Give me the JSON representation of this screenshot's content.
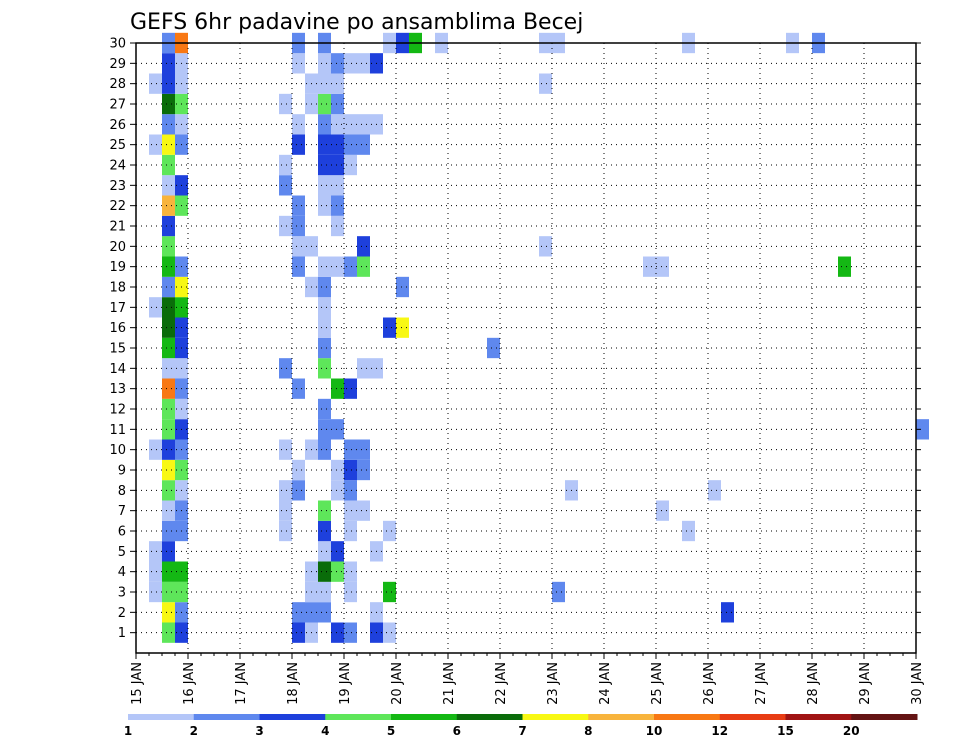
{
  "chart_data": {
    "type": "heatmap",
    "title": "GEFS 6hr padavine po ansamblima Becej",
    "xlabel": "",
    "ylabel": "",
    "x_tick_labels": [
      "15 JAN",
      "16 JAN",
      "17 JAN",
      "18 JAN",
      "19 JAN",
      "20 JAN",
      "21 JAN",
      "22 JAN",
      "23 JAN",
      "24 JAN",
      "25 JAN",
      "26 JAN",
      "27 JAN",
      "28 JAN",
      "29 JAN",
      "30 JAN"
    ],
    "y_tick_labels": [
      "1",
      "2",
      "3",
      "4",
      "5",
      "6",
      "7",
      "8",
      "9",
      "10",
      "11",
      "12",
      "13",
      "14",
      "15",
      "16",
      "17",
      "18",
      "19",
      "20",
      "21",
      "22",
      "23",
      "24",
      "25",
      "26",
      "27",
      "28",
      "29",
      "30"
    ],
    "x_range_days": [
      15,
      30
    ],
    "y_range": [
      0,
      30
    ],
    "grid": true,
    "legend": {
      "placement": "bottom",
      "levels": [
        "1",
        "2",
        "3",
        "4",
        "5",
        "6",
        "7",
        "8",
        "10",
        "12",
        "15",
        "20"
      ],
      "colors": [
        "#b4c6f8",
        "#5f88ee",
        "#1e40dc",
        "#5ee65a",
        "#14b814",
        "#0a6c0a",
        "#f8f814",
        "#f8b43c",
        "#f87814",
        "#e83c14",
        "#a01414",
        "#641414"
      ]
    },
    "cells": [
      [
        1,
        15.5,
        4
      ],
      [
        1,
        15.75,
        3
      ],
      [
        1,
        18.0,
        3
      ],
      [
        1,
        18.25,
        1
      ],
      [
        1,
        18.75,
        3
      ],
      [
        1,
        19.0,
        2
      ],
      [
        1,
        19.5,
        3
      ],
      [
        1,
        19.75,
        1
      ],
      [
        2,
        15.5,
        7
      ],
      [
        2,
        15.75,
        2
      ],
      [
        2,
        18.0,
        2
      ],
      [
        2,
        18.25,
        2
      ],
      [
        2,
        18.5,
        2
      ],
      [
        2,
        19.5,
        1
      ],
      [
        2,
        26.25,
        3
      ],
      [
        3,
        15.25,
        1
      ],
      [
        3,
        15.5,
        4
      ],
      [
        3,
        15.75,
        4
      ],
      [
        3,
        18.25,
        1
      ],
      [
        3,
        18.5,
        1
      ],
      [
        3,
        19.0,
        1
      ],
      [
        3,
        19.75,
        5
      ],
      [
        3,
        23.0,
        2
      ],
      [
        4,
        15.25,
        1
      ],
      [
        4,
        15.5,
        5
      ],
      [
        4,
        15.75,
        5
      ],
      [
        4,
        18.25,
        1
      ],
      [
        4,
        18.5,
        6
      ],
      [
        4,
        18.75,
        4
      ],
      [
        4,
        19.0,
        1
      ],
      [
        5,
        15.25,
        1
      ],
      [
        5,
        15.5,
        3
      ],
      [
        5,
        18.5,
        1
      ],
      [
        5,
        18.75,
        3
      ],
      [
        5,
        19.5,
        1
      ],
      [
        6,
        15.5,
        2
      ],
      [
        6,
        15.75,
        2
      ],
      [
        6,
        17.75,
        1
      ],
      [
        6,
        18.5,
        3
      ],
      [
        6,
        19.0,
        1
      ],
      [
        6,
        19.75,
        1
      ],
      [
        6,
        25.5,
        1
      ],
      [
        7,
        15.5,
        1
      ],
      [
        7,
        15.75,
        2
      ],
      [
        7,
        17.75,
        1
      ],
      [
        7,
        18.5,
        4
      ],
      [
        7,
        19.0,
        1
      ],
      [
        7,
        19.25,
        1
      ],
      [
        7,
        25.0,
        1
      ],
      [
        8,
        15.5,
        4
      ],
      [
        8,
        15.75,
        1
      ],
      [
        8,
        17.75,
        1
      ],
      [
        8,
        18.0,
        2
      ],
      [
        8,
        18.75,
        1
      ],
      [
        8,
        19.0,
        2
      ],
      [
        8,
        23.25,
        1
      ],
      [
        8,
        26.0,
        1
      ],
      [
        9,
        15.5,
        7
      ],
      [
        9,
        15.75,
        4
      ],
      [
        9,
        18.0,
        1
      ],
      [
        9,
        18.75,
        1
      ],
      [
        9,
        19.0,
        3
      ],
      [
        9,
        19.25,
        2
      ],
      [
        10,
        15.25,
        1
      ],
      [
        10,
        15.5,
        3
      ],
      [
        10,
        15.75,
        2
      ],
      [
        10,
        17.75,
        1
      ],
      [
        10,
        18.25,
        1
      ],
      [
        10,
        18.5,
        2
      ],
      [
        10,
        19.0,
        2
      ],
      [
        10,
        19.25,
        2
      ],
      [
        11,
        15.5,
        4
      ],
      [
        11,
        15.75,
        3
      ],
      [
        11,
        18.5,
        2
      ],
      [
        11,
        18.75,
        2
      ],
      [
        11,
        30.0,
        2
      ],
      [
        12,
        15.5,
        4
      ],
      [
        12,
        15.75,
        1
      ],
      [
        12,
        18.5,
        2
      ],
      [
        13,
        15.5,
        9
      ],
      [
        13,
        15.75,
        2
      ],
      [
        13,
        18.0,
        2
      ],
      [
        13,
        18.75,
        5
      ],
      [
        13,
        19.0,
        3
      ],
      [
        14,
        15.5,
        1
      ],
      [
        14,
        15.75,
        1
      ],
      [
        14,
        17.75,
        2
      ],
      [
        14,
        18.5,
        4
      ],
      [
        14,
        19.25,
        1
      ],
      [
        14,
        19.5,
        1
      ],
      [
        15,
        15.5,
        5
      ],
      [
        15,
        15.75,
        3
      ],
      [
        15,
        18.5,
        2
      ],
      [
        15,
        21.75,
        2
      ],
      [
        16,
        15.5,
        6
      ],
      [
        16,
        15.75,
        3
      ],
      [
        16,
        18.5,
        1
      ],
      [
        16,
        19.75,
        3
      ],
      [
        16,
        20.0,
        7
      ],
      [
        17,
        15.25,
        1
      ],
      [
        17,
        15.5,
        6
      ],
      [
        17,
        15.75,
        5
      ],
      [
        17,
        18.5,
        1
      ],
      [
        18,
        15.5,
        2
      ],
      [
        18,
        15.75,
        7
      ],
      [
        18,
        18.25,
        1
      ],
      [
        18,
        18.5,
        2
      ],
      [
        18,
        20.0,
        2
      ],
      [
        19,
        15.5,
        5
      ],
      [
        19,
        15.75,
        2
      ],
      [
        19,
        18.0,
        2
      ],
      [
        19,
        18.5,
        1
      ],
      [
        19,
        18.75,
        1
      ],
      [
        19,
        19.0,
        2
      ],
      [
        19,
        19.25,
        4
      ],
      [
        19,
        24.75,
        1
      ],
      [
        19,
        25.0,
        1
      ],
      [
        19,
        28.5,
        5
      ],
      [
        20,
        15.5,
        4
      ],
      [
        20,
        18.0,
        1
      ],
      [
        20,
        18.25,
        1
      ],
      [
        20,
        19.25,
        3
      ],
      [
        20,
        22.75,
        1
      ],
      [
        21,
        15.5,
        3
      ],
      [
        21,
        17.75,
        1
      ],
      [
        21,
        18.0,
        2
      ],
      [
        21,
        18.75,
        1
      ],
      [
        22,
        15.5,
        8
      ],
      [
        22,
        15.75,
        4
      ],
      [
        22,
        18.0,
        2
      ],
      [
        22,
        18.5,
        1
      ],
      [
        22,
        18.75,
        2
      ],
      [
        23,
        15.5,
        1
      ],
      [
        23,
        15.75,
        3
      ],
      [
        23,
        17.75,
        2
      ],
      [
        23,
        18.5,
        1
      ],
      [
        23,
        18.75,
        1
      ],
      [
        24,
        15.5,
        4
      ],
      [
        24,
        17.75,
        1
      ],
      [
        24,
        18.5,
        3
      ],
      [
        24,
        18.75,
        3
      ],
      [
        24,
        19.0,
        1
      ],
      [
        25,
        15.25,
        1
      ],
      [
        25,
        15.5,
        7
      ],
      [
        25,
        15.75,
        2
      ],
      [
        25,
        18.0,
        3
      ],
      [
        25,
        18.5,
        3
      ],
      [
        25,
        18.75,
        3
      ],
      [
        25,
        19.0,
        2
      ],
      [
        25,
        19.25,
        2
      ],
      [
        26,
        15.5,
        2
      ],
      [
        26,
        15.75,
        1
      ],
      [
        26,
        18.0,
        1
      ],
      [
        26,
        18.5,
        2
      ],
      [
        26,
        18.75,
        1
      ],
      [
        26,
        19.0,
        1
      ],
      [
        26,
        19.25,
        1
      ],
      [
        26,
        19.5,
        1
      ],
      [
        27,
        15.5,
        6
      ],
      [
        27,
        15.75,
        4
      ],
      [
        27,
        17.75,
        1
      ],
      [
        27,
        18.25,
        1
      ],
      [
        27,
        18.5,
        4
      ],
      [
        27,
        18.75,
        2
      ],
      [
        28,
        15.25,
        1
      ],
      [
        28,
        15.5,
        3
      ],
      [
        28,
        15.75,
        1
      ],
      [
        28,
        18.25,
        1
      ],
      [
        28,
        18.5,
        1
      ],
      [
        28,
        18.75,
        1
      ],
      [
        28,
        22.75,
        1
      ],
      [
        29,
        15.5,
        3
      ],
      [
        29,
        15.75,
        1
      ],
      [
        29,
        18.0,
        1
      ],
      [
        29,
        18.5,
        1
      ],
      [
        29,
        18.75,
        2
      ],
      [
        29,
        19.0,
        1
      ],
      [
        29,
        19.25,
        1
      ],
      [
        29,
        19.5,
        3
      ],
      [
        30,
        15.5,
        2
      ],
      [
        30,
        15.75,
        9
      ],
      [
        30,
        18.0,
        2
      ],
      [
        30,
        18.5,
        2
      ],
      [
        30,
        19.75,
        1
      ],
      [
        30,
        20.0,
        3
      ],
      [
        30,
        20.25,
        5
      ],
      [
        30,
        20.75,
        1
      ],
      [
        30,
        22.75,
        1
      ],
      [
        30,
        23.0,
        1
      ],
      [
        30,
        25.5,
        1
      ],
      [
        30,
        27.5,
        1
      ],
      [
        30,
        28.0,
        2
      ]
    ]
  }
}
